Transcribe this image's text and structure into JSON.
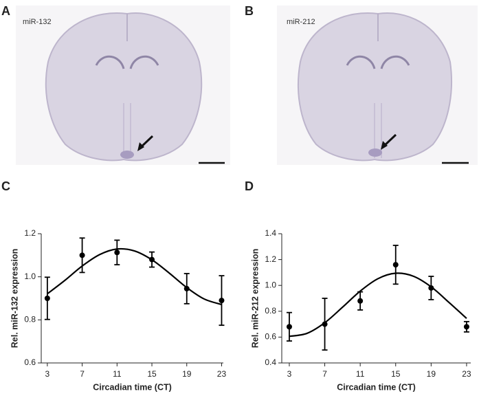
{
  "images": [
    {
      "panel": "A",
      "label": "miR-132"
    },
    {
      "panel": "B",
      "label": "miR-212"
    }
  ],
  "chart_data": [
    {
      "type": "errorbar",
      "panel": "C",
      "xlabel": "Circadian time (CT)",
      "ylabel": "Rel. miR-132 expression",
      "x": [
        3,
        7,
        11,
        15,
        19,
        23
      ],
      "series": [
        {
          "color": "#000000",
          "values": [
            0.9,
            1.1,
            1.113,
            1.08,
            0.945,
            0.89
          ],
          "errors": [
            0.098,
            0.08,
            0.057,
            0.035,
            0.07,
            0.115
          ]
        }
      ],
      "fit": {
        "color": "#000000",
        "x": [
          3,
          5,
          7,
          9,
          11,
          13,
          15,
          17,
          19,
          21,
          23
        ],
        "values": [
          0.921,
          0.983,
          1.05,
          1.103,
          1.129,
          1.12,
          1.079,
          1.017,
          0.95,
          0.897,
          0.871
        ]
      },
      "xlim": [
        2.3,
        23.2
      ],
      "xticks": [
        3,
        7,
        11,
        15,
        19,
        23
      ],
      "ylim": [
        0.6,
        1.2
      ],
      "yticks": [
        0.6,
        0.8,
        {
          "value": 1,
          "label": "1.0"
        },
        1.2
      ]
    },
    {
      "type": "errorbar",
      "panel": "D",
      "xlabel": "Circadian time (CT)",
      "ylabel": "Rel. miR-212 expression",
      "x": [
        3,
        7,
        11,
        15,
        19,
        23
      ],
      "series": [
        {
          "color": "#000000",
          "values": [
            0.68,
            0.7,
            0.88,
            1.16,
            0.98,
            0.68
          ],
          "errors": [
            0.11,
            0.2,
            0.07,
            0.15,
            0.09,
            0.04
          ]
        }
      ],
      "fit": {
        "color": "#000000",
        "x": [
          3,
          5,
          7,
          9,
          11,
          13,
          15,
          17,
          19,
          21,
          23
        ],
        "values": [
          0.606,
          0.629,
          0.711,
          0.831,
          0.956,
          1.052,
          1.094,
          1.071,
          0.989,
          0.869,
          0.745
        ]
      },
      "xlim": [
        2.15,
        23.47
      ],
      "xticks": [
        3,
        7,
        11,
        15,
        19,
        23
      ],
      "ylim": [
        0.4,
        1.4
      ],
      "yticks": [
        0.4,
        0.6,
        0.8,
        {
          "value": 1,
          "label": "1.0"
        },
        1.2,
        1.4
      ]
    }
  ]
}
